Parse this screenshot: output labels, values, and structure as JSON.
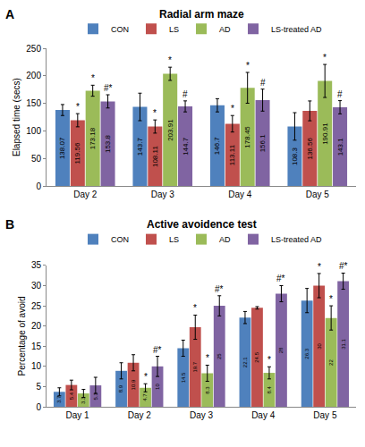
{
  "chart_data": [
    {
      "type": "bar",
      "panel_label": "A",
      "title": "Radial arm maze",
      "y_label": "Elapsed time (secs)",
      "categories": [
        "Day 2",
        "Day 3",
        "Day 4",
        "Day 5"
      ],
      "ylim": [
        0,
        250
      ],
      "yticks": [
        0,
        50,
        100,
        150,
        200,
        250
      ],
      "grid": false,
      "legend": "top",
      "data_labels": true,
      "series": [
        {
          "name": "CON",
          "color": "#4F81BD",
          "values": [
            138.07,
            143.7,
            146.7,
            108.3
          ],
          "errors": [
            10,
            25,
            12,
            25
          ],
          "annotations": [
            null,
            null,
            null,
            null
          ]
        },
        {
          "name": "LS",
          "color": "#C0504D",
          "values": [
            119.56,
            108.11,
            113.11,
            136.56
          ],
          "errors": [
            12,
            12,
            15,
            18
          ],
          "annotations": [
            "*",
            "*",
            "*",
            null
          ]
        },
        {
          "name": "AD",
          "color": "#9BBB59",
          "values": [
            173.18,
            203.91,
            178.45,
            190.91
          ],
          "errors": [
            10,
            12,
            28,
            30
          ],
          "annotations": [
            "*",
            "*",
            "*",
            "*"
          ]
        },
        {
          "name": "LS-treated AD",
          "color": "#8064A2",
          "values": [
            153.8,
            144.7,
            156.1,
            143.1
          ],
          "errors": [
            12,
            10,
            20,
            12
          ],
          "annotations": [
            "#*",
            "#",
            "#",
            "#"
          ]
        }
      ]
    },
    {
      "type": "bar",
      "panel_label": "B",
      "title": "Active avoidence test",
      "y_label": "Percentage of avoid",
      "categories": [
        "Day 1",
        "Day 2",
        "Day 3",
        "Day 4",
        "Day 5"
      ],
      "ylim": [
        0,
        35
      ],
      "yticks": [
        0,
        5,
        10,
        15,
        20,
        25,
        30,
        35
      ],
      "grid": false,
      "legend": "top",
      "data_labels": true,
      "series": [
        {
          "name": "CON",
          "color": "#4F81BD",
          "values": [
            3.7,
            8.9,
            14.5,
            22.1,
            26.3
          ],
          "errors": [
            1,
            2,
            2,
            1.5,
            3
          ],
          "annotations": [
            null,
            null,
            null,
            null,
            null
          ]
        },
        {
          "name": "LS",
          "color": "#C0504D",
          "values": [
            5.4,
            10.9,
            19.7,
            24.5,
            30
          ],
          "errors": [
            1.2,
            2,
            3,
            0.3,
            3
          ],
          "annotations": [
            null,
            null,
            "*",
            null,
            "*"
          ]
        },
        {
          "name": "AD",
          "color": "#9BBB59",
          "values": [
            3.3,
            4.7,
            8.3,
            8.4,
            22
          ],
          "errors": [
            1,
            1,
            2,
            1.5,
            3
          ],
          "annotations": [
            null,
            "*",
            "*",
            "*",
            "*"
          ]
        },
        {
          "name": "LS-treated AD",
          "color": "#8064A2",
          "values": [
            5.3,
            10,
            25,
            28,
            31.1
          ],
          "errors": [
            2,
            2.5,
            2.5,
            2,
            2
          ],
          "annotations": [
            null,
            "#*",
            "#*",
            "#*",
            "#*"
          ]
        }
      ]
    }
  ]
}
